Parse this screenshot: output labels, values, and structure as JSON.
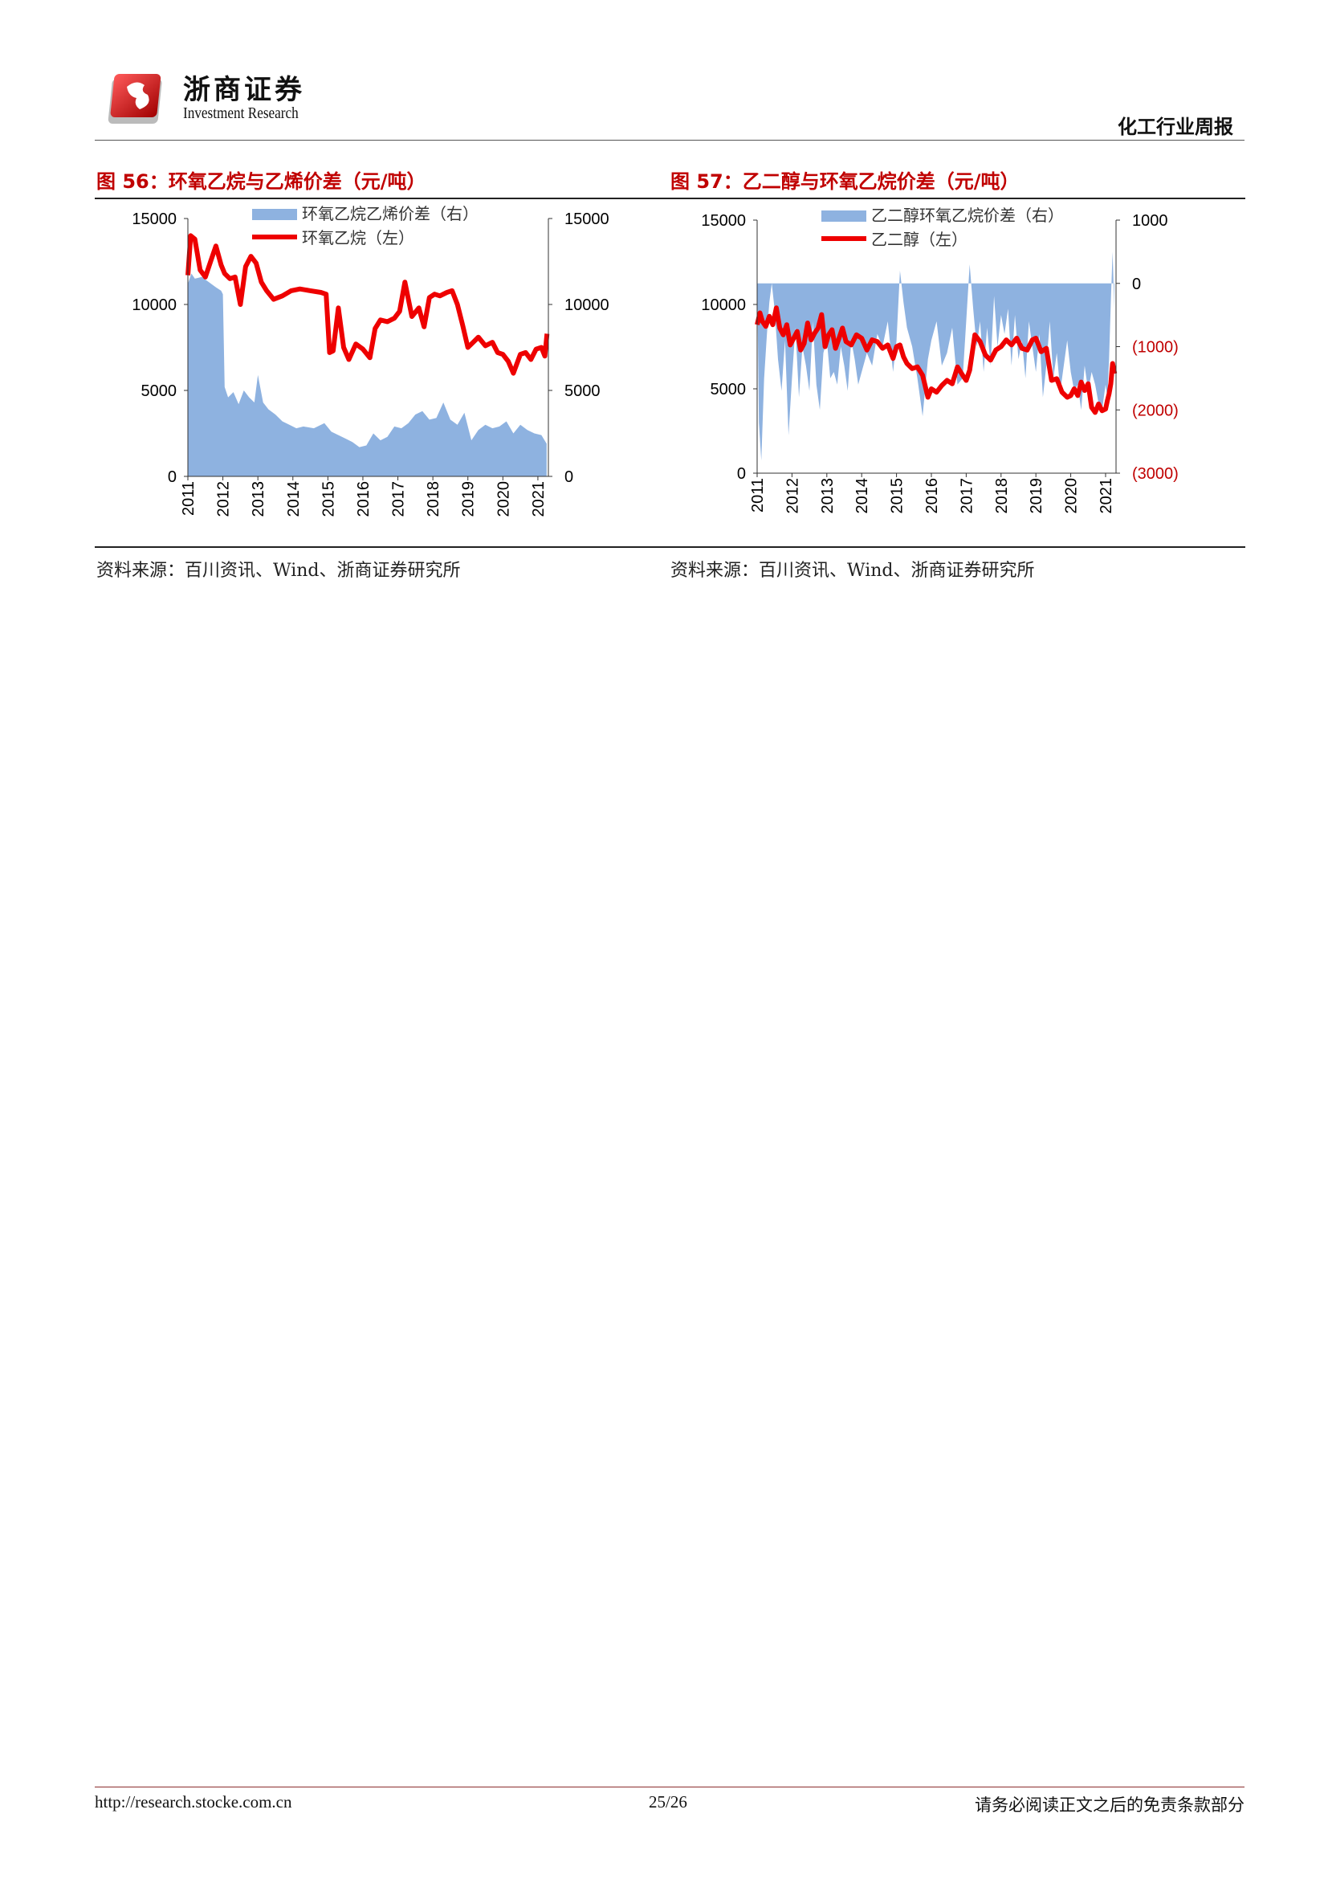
{
  "header": {
    "company_cn": "浙商证券",
    "company_en": "Investment Research",
    "report_type": "化工行业周报"
  },
  "colors": {
    "fill": "#8eb2e0",
    "line": "#ee0000",
    "title": "#c00000",
    "axis_red": "#c00000"
  },
  "figures": [
    {
      "title": "图 56：环氧乙烷与乙烯价差（元/吨）",
      "source": "资料来源：百川资讯、Wind、浙商证券研究所"
    },
    {
      "title": "图 57：乙二醇与环氧乙烷价差（元/吨）",
      "source": "资料来源：百川资讯、Wind、浙商证券研究所"
    }
  ],
  "chart_data": [
    {
      "type": "line",
      "x_tick_labels": [
        "2011",
        "2012",
        "2013",
        "2014",
        "2015",
        "2016",
        "2017",
        "2018",
        "2019",
        "2020",
        "2021"
      ],
      "xlim": [
        2011.0,
        2021.3
      ],
      "left_axis": {
        "ylim": [
          0,
          15000
        ],
        "ticks": [
          "15000",
          "10000",
          "5000",
          "0"
        ]
      },
      "right_axis": {
        "ylim": [
          0,
          15000
        ],
        "ticks": [
          "15000",
          "10000",
          "5000",
          "0"
        ]
      },
      "legend_position": "top",
      "series": [
        {
          "name": "环氧乙烷乙烯价差（右）",
          "kind": "area",
          "axis": "right",
          "x": [
            2011.0,
            2011.1,
            2011.2,
            2011.4,
            2011.6,
            2011.8,
            2011.95,
            2012.0,
            2012.05,
            2012.15,
            2012.3,
            2012.45,
            2012.6,
            2012.75,
            2012.9,
            2013.0,
            2013.15,
            2013.3,
            2013.5,
            2013.7,
            2013.9,
            2014.1,
            2014.3,
            2014.6,
            2014.9,
            2015.1,
            2015.3,
            2015.5,
            2015.7,
            2015.9,
            2016.1,
            2016.3,
            2016.5,
            2016.7,
            2016.9,
            2017.1,
            2017.3,
            2017.5,
            2017.7,
            2017.9,
            2018.1,
            2018.3,
            2018.5,
            2018.7,
            2018.9,
            2019.1,
            2019.3,
            2019.5,
            2019.7,
            2019.9,
            2020.1,
            2020.3,
            2020.5,
            2020.7,
            2020.9,
            2021.1,
            2021.25
          ],
          "values": [
            11200,
            11800,
            11500,
            11600,
            11300,
            11000,
            10800,
            10600,
            5200,
            4600,
            4900,
            4200,
            5000,
            4600,
            4300,
            5900,
            4300,
            3900,
            3600,
            3200,
            3000,
            2800,
            2900,
            2800,
            3100,
            2600,
            2400,
            2200,
            2000,
            1700,
            1800,
            2500,
            2100,
            2300,
            2900,
            2800,
            3100,
            3600,
            3800,
            3300,
            3400,
            4300,
            3300,
            3000,
            3700,
            2100,
            2700,
            3000,
            2800,
            2900,
            3200,
            2500,
            3000,
            2700,
            2500,
            2400,
            1900
          ]
        },
        {
          "name": "环氧乙烷（左）",
          "kind": "line",
          "axis": "left",
          "x": [
            2011.0,
            2011.08,
            2011.2,
            2011.35,
            2011.5,
            2011.65,
            2011.8,
            2011.95,
            2012.05,
            2012.2,
            2012.35,
            2012.5,
            2012.65,
            2012.8,
            2012.95,
            2013.1,
            2013.25,
            2013.45,
            2013.7,
            2013.95,
            2014.2,
            2014.5,
            2014.8,
            2014.95,
            2015.05,
            2015.15,
            2015.3,
            2015.45,
            2015.6,
            2015.8,
            2016.0,
            2016.2,
            2016.35,
            2016.5,
            2016.7,
            2016.9,
            2017.05,
            2017.2,
            2017.4,
            2017.6,
            2017.75,
            2017.9,
            2018.05,
            2018.2,
            2018.4,
            2018.55,
            2018.7,
            2018.85,
            2019.0,
            2019.15,
            2019.3,
            2019.5,
            2019.7,
            2019.85,
            2020.0,
            2020.15,
            2020.3,
            2020.5,
            2020.65,
            2020.8,
            2020.95,
            2021.1,
            2021.2,
            2021.26
          ],
          "values": [
            11700,
            14000,
            13800,
            12000,
            11600,
            12500,
            13400,
            12300,
            11800,
            11500,
            11600,
            10000,
            12200,
            12800,
            12400,
            11300,
            10800,
            10300,
            10500,
            10800,
            10900,
            10800,
            10700,
            10600,
            7200,
            7300,
            9800,
            7500,
            6800,
            7700,
            7400,
            6900,
            8600,
            9100,
            9000,
            9200,
            9600,
            11300,
            9300,
            9800,
            8700,
            10400,
            10600,
            10500,
            10700,
            10800,
            10000,
            8800,
            7500,
            7800,
            8100,
            7600,
            7800,
            7200,
            7100,
            6700,
            6000,
            7100,
            7200,
            6800,
            7400,
            7500,
            7000,
            8300
          ]
        }
      ]
    },
    {
      "type": "line",
      "x_tick_labels": [
        "2011",
        "2012",
        "2013",
        "2014",
        "2015",
        "2016",
        "2017",
        "2018",
        "2019",
        "2020",
        "2021"
      ],
      "xlim": [
        2011.0,
        2021.3
      ],
      "left_axis": {
        "ylim": [
          0,
          15000
        ],
        "ticks": [
          "15000",
          "10000",
          "5000",
          "0"
        ]
      },
      "right_axis": {
        "ylim": [
          -3000,
          1000
        ],
        "ticks": [
          "1000",
          "0",
          "(1000)",
          "(2000)",
          "(3000)"
        ]
      },
      "legend_position": "top",
      "series": [
        {
          "name": "乙二醇环氧乙烷价差（右）",
          "kind": "area",
          "axis": "right",
          "x": [
            2011.0,
            2011.05,
            2011.12,
            2011.2,
            2011.28,
            2011.35,
            2011.42,
            2011.5,
            2011.6,
            2011.7,
            2011.8,
            2011.9,
            2012.0,
            2012.1,
            2012.2,
            2012.3,
            2012.4,
            2012.5,
            2012.6,
            2012.7,
            2012.8,
            2012.9,
            2013.0,
            2013.1,
            2013.2,
            2013.3,
            2013.4,
            2013.5,
            2013.6,
            2013.7,
            2013.8,
            2013.9,
            2014.0,
            2014.15,
            2014.3,
            2014.45,
            2014.6,
            2014.75,
            2014.9,
            2015.0,
            2015.1,
            2015.2,
            2015.3,
            2015.45,
            2015.6,
            2015.75,
            2015.9,
            2016.0,
            2016.15,
            2016.3,
            2016.45,
            2016.6,
            2016.75,
            2016.9,
            2017.0,
            2017.1,
            2017.2,
            2017.3,
            2017.4,
            2017.5,
            2017.6,
            2017.7,
            2017.8,
            2017.9,
            2018.0,
            2018.1,
            2018.2,
            2018.3,
            2018.4,
            2018.5,
            2018.6,
            2018.7,
            2018.8,
            2018.9,
            2019.0,
            2019.1,
            2019.2,
            2019.3,
            2019.4,
            2019.5,
            2019.6,
            2019.7,
            2019.8,
            2019.9,
            2020.0,
            2020.1,
            2020.2,
            2020.3,
            2020.4,
            2020.5,
            2020.6,
            2020.7,
            2020.8,
            2020.9,
            2021.0,
            2021.05,
            2021.1,
            2021.15,
            2021.2,
            2021.25
          ],
          "values": [
            200,
            -2200,
            -2800,
            -1500,
            -800,
            -300,
            0,
            -400,
            -1200,
            -1700,
            -900,
            -2400,
            -1500,
            -700,
            -1800,
            -1000,
            -1300,
            -1700,
            -600,
            -1600,
            -2000,
            -1100,
            -900,
            -1500,
            -1400,
            -1600,
            -1000,
            -1300,
            -1700,
            -900,
            -1200,
            -1600,
            -1400,
            -1100,
            -1300,
            -800,
            -1000,
            -600,
            -1400,
            -900,
            200,
            -300,
            -700,
            -1000,
            -1500,
            -2100,
            -1200,
            -900,
            -600,
            -1300,
            -1100,
            -700,
            -1600,
            -1500,
            -600,
            300,
            -400,
            -1000,
            -600,
            -1400,
            -700,
            -1300,
            -200,
            -1000,
            -500,
            -800,
            -400,
            -1300,
            -500,
            -1200,
            -900,
            -1500,
            -600,
            -1000,
            -1400,
            -800,
            -1800,
            -1300,
            -600,
            -1500,
            -1100,
            -1700,
            -1300,
            -900,
            -1400,
            -1700,
            -1600,
            -2000,
            -1300,
            -1700,
            -1400,
            -1600,
            -1900,
            -2000,
            -1600,
            -1800,
            -1200,
            -300,
            500,
            -400
          ]
        },
        {
          "name": "乙二醇（左）",
          "kind": "line",
          "axis": "left",
          "x": [
            2011.0,
            2011.08,
            2011.15,
            2011.25,
            2011.35,
            2011.45,
            2011.55,
            2011.65,
            2011.75,
            2011.85,
            2011.95,
            2012.05,
            2012.15,
            2012.25,
            2012.35,
            2012.45,
            2012.55,
            2012.65,
            2012.75,
            2012.85,
            2012.95,
            2013.05,
            2013.15,
            2013.25,
            2013.35,
            2013.45,
            2013.55,
            2013.7,
            2013.85,
            2014.0,
            2014.15,
            2014.3,
            2014.45,
            2014.6,
            2014.75,
            2014.9,
            2015.0,
            2015.1,
            2015.2,
            2015.3,
            2015.45,
            2015.6,
            2015.75,
            2015.9,
            2016.0,
            2016.15,
            2016.3,
            2016.45,
            2016.6,
            2016.75,
            2016.9,
            2017.0,
            2017.1,
            2017.25,
            2017.4,
            2017.55,
            2017.7,
            2017.85,
            2018.0,
            2018.15,
            2018.3,
            2018.45,
            2018.6,
            2018.75,
            2018.9,
            2019.0,
            2019.15,
            2019.3,
            2019.45,
            2019.6,
            2019.75,
            2019.9,
            2020.0,
            2020.1,
            2020.2,
            2020.3,
            2020.4,
            2020.5,
            2020.6,
            2020.7,
            2020.8,
            2020.9,
            2021.0,
            2021.05,
            2021.1,
            2021.15,
            2021.2,
            2021.26
          ],
          "values": [
            8800,
            9500,
            9000,
            8700,
            9300,
            8800,
            9800,
            8600,
            8200,
            8800,
            7600,
            8000,
            8400,
            7300,
            7700,
            8900,
            7900,
            8300,
            8600,
            9400,
            7500,
            8200,
            8500,
            7400,
            8000,
            8600,
            7800,
            7600,
            8200,
            8000,
            7300,
            7900,
            7800,
            7400,
            7600,
            6800,
            7500,
            7600,
            6900,
            6500,
            6200,
            6300,
            5800,
            4500,
            5000,
            4800,
            5200,
            5500,
            5300,
            6300,
            5800,
            5500,
            6100,
            8200,
            7800,
            7000,
            6700,
            7300,
            7500,
            7900,
            7600,
            8000,
            7400,
            7300,
            7900,
            8000,
            7200,
            7400,
            5500,
            5600,
            4800,
            4500,
            4600,
            5000,
            4600,
            5400,
            4900,
            5300,
            3900,
            3600,
            4100,
            3700,
            3800,
            4300,
            4700,
            5300,
            6500,
            5900
          ]
        }
      ]
    }
  ],
  "footer": {
    "url": "http://research.stocke.com.cn",
    "page": "25/26",
    "disclaimer": "请务必阅读正文之后的免责条款部分"
  }
}
